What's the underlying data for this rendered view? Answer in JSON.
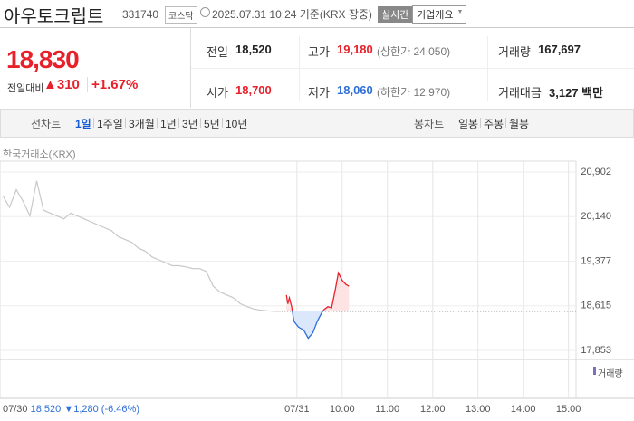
{
  "header": {
    "name": "아우토크립트",
    "code": "331740",
    "market": "코스닥",
    "time": "2025.07.31 10:24 기준(KRX 장중)",
    "realtime": "실시간",
    "company": "기업개요"
  },
  "price": {
    "current": "18,830",
    "change_label": "전일대비",
    "change": "▲310",
    "rate": "+1.67%"
  },
  "stats": [
    {
      "label": "전일",
      "value": "18,520"
    },
    {
      "label": "고가",
      "value": "19,180",
      "note": "(상한가 24,050)"
    },
    {
      "label": "거래량",
      "value": "167,697"
    },
    {
      "label": "시가",
      "value": "18,700"
    },
    {
      "label": "저가",
      "value": "18,060",
      "note": "(하한가 12,970)"
    },
    {
      "label": "거래대금",
      "value": "3,127 백만"
    }
  ],
  "tabs": {
    "line": {
      "label": "선차트",
      "items": [
        "1일",
        "1주일",
        "3개월",
        "1년",
        "3년",
        "5년",
        "10년"
      ]
    },
    "candle": {
      "label": "봉차트",
      "items": [
        "일봉",
        "주봉",
        "월봉"
      ]
    }
  },
  "source": "한국거래소(KRX)",
  "volume_label": "거래량",
  "footer": {
    "date": "07/30",
    "close": "18,520",
    "change": "▼1,280",
    "rate": "(-6.46%)"
  },
  "chart_data": {
    "type": "line",
    "xlim": [
      0,
      760
    ],
    "xticks": [
      {
        "value": 390,
        "label": "07/31"
      },
      {
        "value": 450,
        "label": "10:00"
      },
      {
        "value": 510,
        "label": "11:00"
      },
      {
        "value": 570,
        "label": "12:00"
      },
      {
        "value": 630,
        "label": "13:00"
      },
      {
        "value": 690,
        "label": "14:00"
      },
      {
        "value": 750,
        "label": "15:00"
      }
    ],
    "ylim": [
      17853,
      20902
    ],
    "yticks": [
      {
        "value": 20902,
        "label": "20,902"
      },
      {
        "value": 20140,
        "label": "20,140"
      },
      {
        "value": 19377,
        "label": "19,377"
      },
      {
        "value": 18615,
        "label": "18,615"
      },
      {
        "value": 17853,
        "label": "17,853"
      }
    ],
    "baseline": 18520,
    "grid": true,
    "up_color": "#e8202a",
    "down_color": "#2f6fd8",
    "series": [
      {
        "color": "#c8c8c8",
        "x": [
          0,
          9,
          18,
          27,
          36,
          45,
          54,
          63,
          72,
          81,
          90,
          99,
          108,
          117,
          126,
          135,
          144,
          153,
          162,
          171,
          180,
          189,
          198,
          207,
          216,
          225,
          234,
          243,
          252,
          261,
          270,
          279,
          288,
          297,
          306,
          315,
          324,
          333,
          342,
          351,
          360,
          369
        ],
        "values": [
          20500,
          20300,
          20600,
          20400,
          20150,
          20750,
          20250,
          20200,
          20150,
          20100,
          20200,
          20150,
          20100,
          20050,
          20000,
          19950,
          19900,
          19800,
          19750,
          19700,
          19600,
          19550,
          19450,
          19400,
          19350,
          19300,
          19300,
          19280,
          19250,
          19250,
          19200,
          18950,
          18850,
          18800,
          18750,
          18650,
          18600,
          18560,
          18540,
          18530,
          18520,
          18520
        ]
      },
      {
        "split": true,
        "x": [
          376,
          378,
          380,
          383,
          386,
          392,
          399,
          405,
          411,
          417,
          423,
          426,
          431,
          436,
          441,
          445,
          450,
          455,
          459
        ],
        "values": [
          18800,
          18650,
          18750,
          18600,
          18350,
          18250,
          18200,
          18060,
          18150,
          18350,
          18500,
          18550,
          18600,
          18580,
          18900,
          19180,
          19050,
          18980,
          18950
        ]
      }
    ]
  }
}
